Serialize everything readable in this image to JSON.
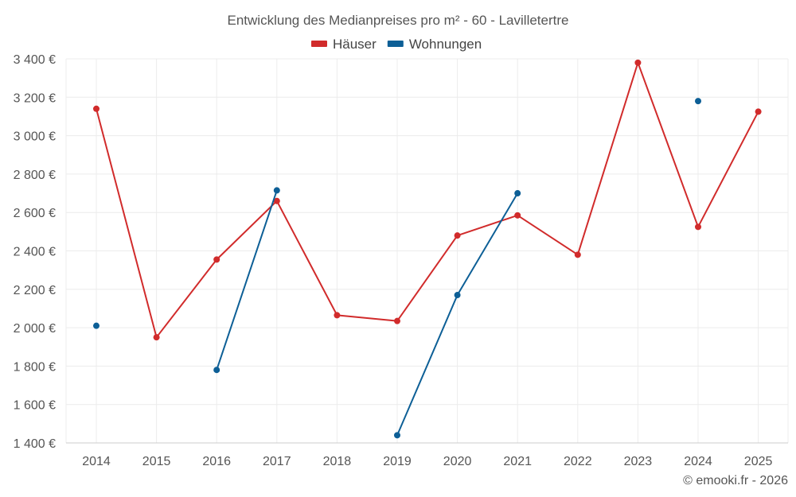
{
  "chart_data": {
    "type": "line",
    "title": "Entwicklung des Medianpreises pro m² - 60 - Lavilletertre",
    "x_labels": [
      "2014",
      "2015",
      "2016",
      "2017",
      "2018",
      "2019",
      "2020",
      "2021",
      "2022",
      "2023",
      "2024",
      "2025"
    ],
    "y_ticks": [
      {
        "value": 1400,
        "label": "1 400 €"
      },
      {
        "value": 1600,
        "label": "1 600 €"
      },
      {
        "value": 1800,
        "label": "1 800 €"
      },
      {
        "value": 2000,
        "label": "2 000 €"
      },
      {
        "value": 2200,
        "label": "2 200 €"
      },
      {
        "value": 2400,
        "label": "2 400 €"
      },
      {
        "value": 2600,
        "label": "2 600 €"
      },
      {
        "value": 2800,
        "label": "2 800 €"
      },
      {
        "value": 3000,
        "label": "3 000 €"
      },
      {
        "value": 3200,
        "label": "3 200 €"
      },
      {
        "value": 3400,
        "label": "3 400 €"
      }
    ],
    "ylim": [
      1400,
      3500
    ],
    "legend_position": "top-center",
    "grid": true,
    "series": [
      {
        "name": "Häuser",
        "color": "#d12b2b",
        "values": [
          3140,
          1950,
          2355,
          2660,
          2065,
          2035,
          2480,
          2585,
          2380,
          3380,
          2525,
          3125
        ]
      },
      {
        "name": "Wohnungen",
        "color": "#0d5f96",
        "values": [
          2010,
          null,
          1780,
          2715,
          null,
          1440,
          2170,
          2700,
          null,
          null,
          3180,
          null
        ]
      }
    ]
  },
  "credit": "© emooki.fr - 2026"
}
